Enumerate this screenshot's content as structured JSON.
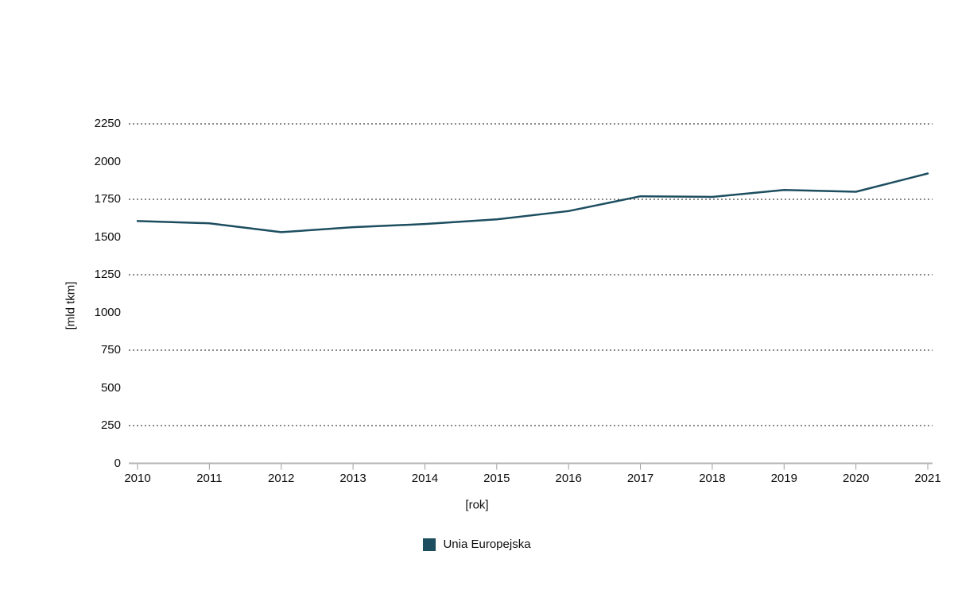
{
  "colors": {
    "series": "#1d4e60",
    "axis": "#b3b3b3",
    "tick": "#9e9e9e",
    "gridline": "#141414",
    "text": "#0d0d0d",
    "background": "#ffffff"
  },
  "legend": {
    "label": "Unia Europejska"
  },
  "chart_data": {
    "type": "line",
    "title": "",
    "xlabel": "[rok]",
    "ylabel": "[mld tkm]",
    "x": [
      "2010",
      "2011",
      "2012",
      "2013",
      "2014",
      "2015",
      "2016",
      "2017",
      "2018",
      "2019",
      "2020",
      "2021"
    ],
    "series": [
      {
        "name": "Unia Europejska",
        "color": "#1d4e60",
        "values": [
          1606,
          1591,
          1532,
          1565,
          1586,
          1617,
          1672,
          1770,
          1766,
          1812,
          1800,
          1921
        ]
      }
    ],
    "ylim": [
      0,
      2250
    ],
    "y_ticks": [
      "0",
      "250",
      "500",
      "750",
      "1000",
      "1250",
      "1500",
      "1750",
      "2000",
      "2250"
    ],
    "y_tick_values": [
      0,
      250,
      500,
      750,
      1000,
      1250,
      1500,
      1750,
      2000,
      2250
    ],
    "gridline_values": [
      250,
      750,
      1250,
      1750,
      2250
    ],
    "grid_style": "dotted",
    "legend_position": "bottom"
  }
}
